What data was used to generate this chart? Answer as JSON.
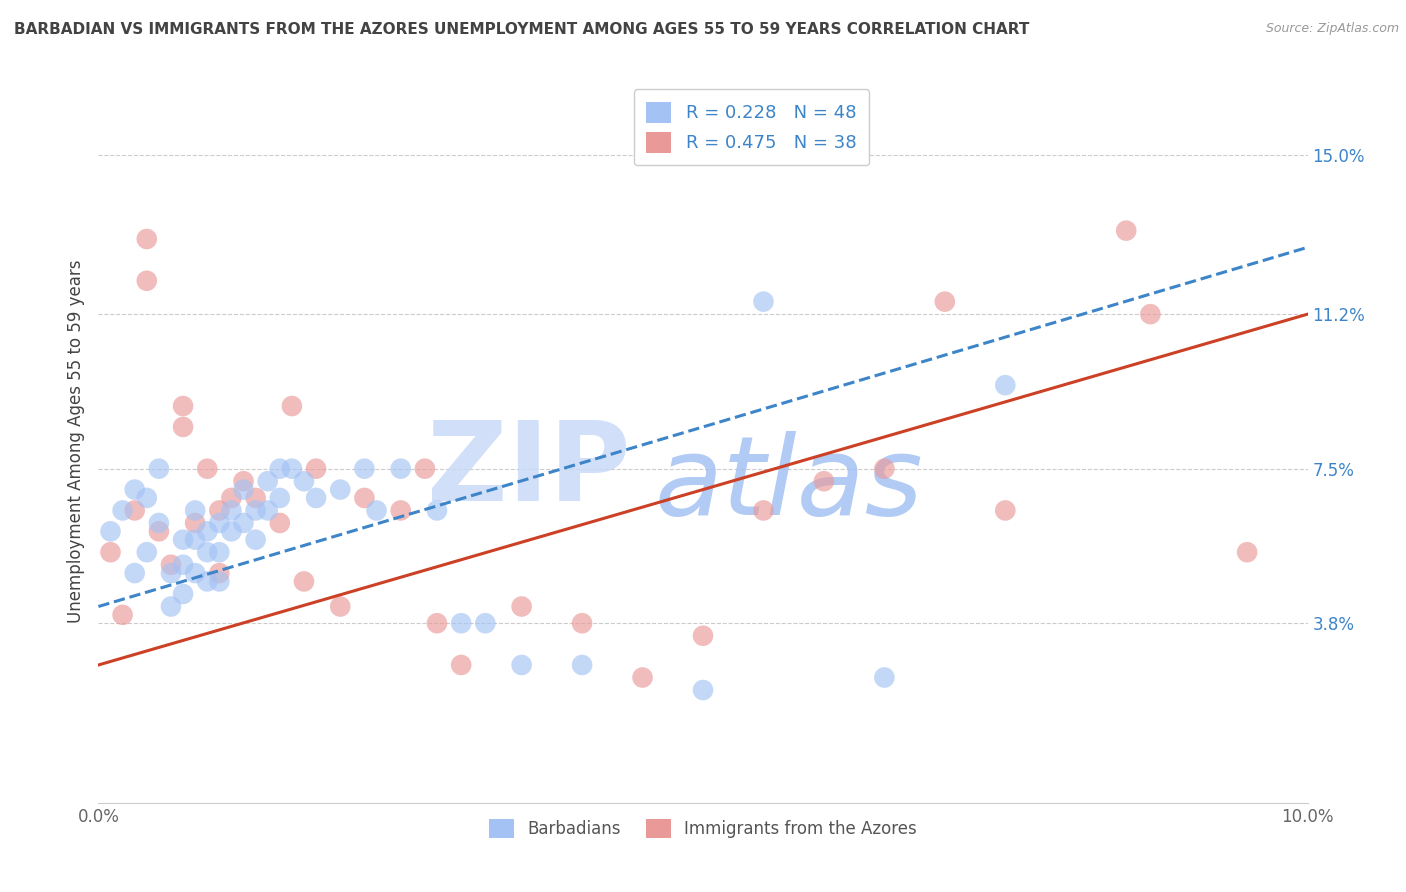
{
  "title": "BARBADIAN VS IMMIGRANTS FROM THE AZORES UNEMPLOYMENT AMONG AGES 55 TO 59 YEARS CORRELATION CHART",
  "source": "Source: ZipAtlas.com",
  "ylabel": "Unemployment Among Ages 55 to 59 years",
  "xlim": [
    0.0,
    0.1
  ],
  "ylim": [
    -0.005,
    0.168
  ],
  "xticks": [
    0.0,
    0.02,
    0.04,
    0.06,
    0.08,
    0.1
  ],
  "xticklabels": [
    "0.0%",
    "",
    "",
    "",
    "",
    "10.0%"
  ],
  "yticks_right": [
    0.038,
    0.075,
    0.112,
    0.15
  ],
  "yticklabels_right": [
    "3.8%",
    "7.5%",
    "11.2%",
    "15.0%"
  ],
  "legend_r1": "R = 0.228",
  "legend_n1": "N = 48",
  "legend_r2": "R = 0.475",
  "legend_n2": "N = 38",
  "blue_color": "#a4c2f4",
  "pink_color": "#ea9999",
  "blue_line_color": "#3d85c8",
  "pink_line_color": "#cc4125",
  "legend_text_color": "#3d85c8",
  "title_color": "#434343",
  "watermark_zip_color": "#c9daf8",
  "watermark_atlas_color": "#a4c2f4",
  "grid_color": "#cccccc",
  "blue_scatter_x": [
    0.001,
    0.002,
    0.003,
    0.003,
    0.004,
    0.004,
    0.005,
    0.005,
    0.006,
    0.006,
    0.007,
    0.007,
    0.007,
    0.008,
    0.008,
    0.008,
    0.009,
    0.009,
    0.009,
    0.01,
    0.01,
    0.01,
    0.011,
    0.011,
    0.012,
    0.012,
    0.013,
    0.013,
    0.014,
    0.014,
    0.015,
    0.015,
    0.016,
    0.017,
    0.018,
    0.02,
    0.022,
    0.023,
    0.025,
    0.028,
    0.03,
    0.032,
    0.035,
    0.04,
    0.05,
    0.055,
    0.065,
    0.075
  ],
  "blue_scatter_y": [
    0.06,
    0.065,
    0.07,
    0.05,
    0.068,
    0.055,
    0.062,
    0.075,
    0.05,
    0.042,
    0.058,
    0.052,
    0.045,
    0.065,
    0.058,
    0.05,
    0.06,
    0.055,
    0.048,
    0.062,
    0.055,
    0.048,
    0.065,
    0.06,
    0.07,
    0.062,
    0.065,
    0.058,
    0.072,
    0.065,
    0.075,
    0.068,
    0.075,
    0.072,
    0.068,
    0.07,
    0.075,
    0.065,
    0.075,
    0.065,
    0.038,
    0.038,
    0.028,
    0.028,
    0.022,
    0.115,
    0.025,
    0.095
  ],
  "pink_scatter_x": [
    0.001,
    0.002,
    0.003,
    0.004,
    0.004,
    0.005,
    0.006,
    0.007,
    0.007,
    0.008,
    0.009,
    0.01,
    0.01,
    0.011,
    0.012,
    0.013,
    0.015,
    0.016,
    0.017,
    0.018,
    0.02,
    0.022,
    0.025,
    0.027,
    0.028,
    0.03,
    0.035,
    0.04,
    0.045,
    0.05,
    0.055,
    0.06,
    0.065,
    0.07,
    0.075,
    0.085,
    0.087,
    0.095
  ],
  "pink_scatter_y": [
    0.055,
    0.04,
    0.065,
    0.12,
    0.13,
    0.06,
    0.052,
    0.09,
    0.085,
    0.062,
    0.075,
    0.065,
    0.05,
    0.068,
    0.072,
    0.068,
    0.062,
    0.09,
    0.048,
    0.075,
    0.042,
    0.068,
    0.065,
    0.075,
    0.038,
    0.028,
    0.042,
    0.038,
    0.025,
    0.035,
    0.065,
    0.072,
    0.075,
    0.115,
    0.065,
    0.132,
    0.112,
    0.055
  ],
  "blue_trend_x": [
    0.0,
    0.1
  ],
  "blue_trend_y": [
    0.042,
    0.128
  ],
  "pink_trend_x": [
    0.0,
    0.1
  ],
  "pink_trend_y": [
    0.028,
    0.112
  ]
}
